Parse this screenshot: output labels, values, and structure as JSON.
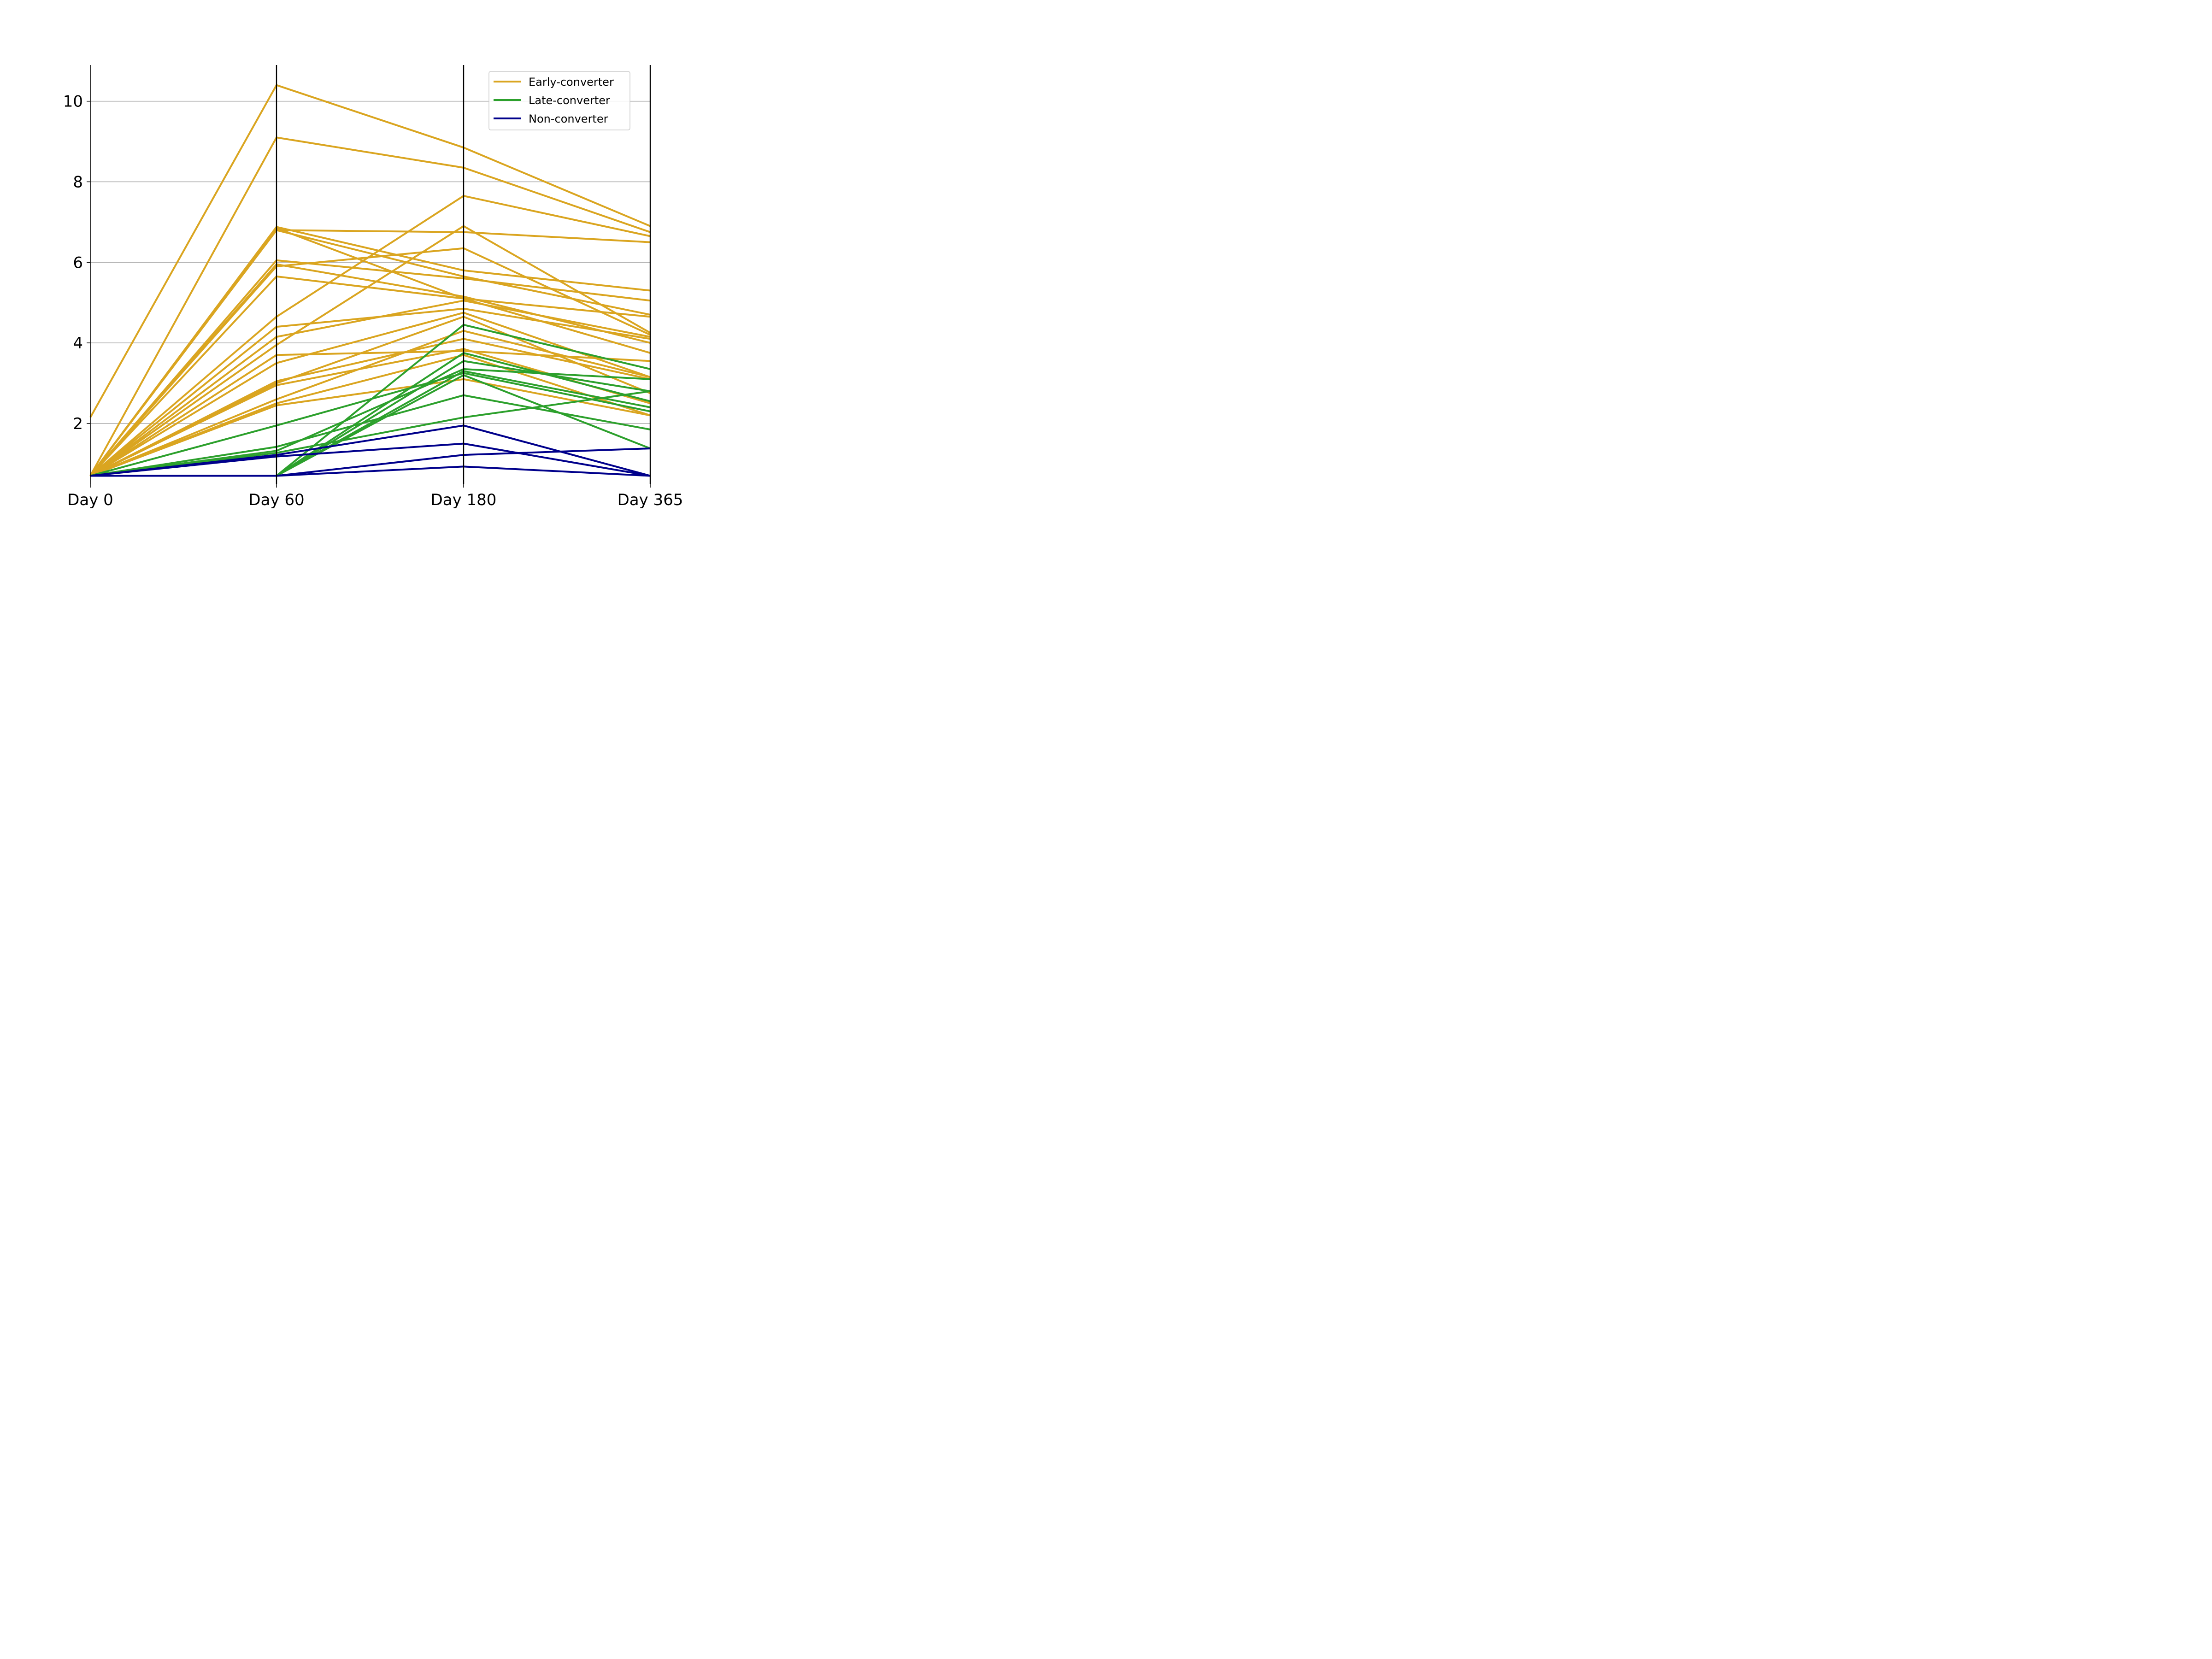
{
  "chart_data": {
    "type": "line",
    "title": "",
    "xlabel": "",
    "ylabel": "",
    "categories": [
      "Day 0",
      "Day 60",
      "Day 180",
      "Day 365"
    ],
    "yticks": [
      "2",
      "4",
      "6",
      "8",
      "10"
    ],
    "ylim": [
      0.5,
      10.9
    ],
    "grid": "horizontal",
    "legend": {
      "position": "top-right",
      "entries": [
        "Early-converter",
        "Late-converter",
        "Non-converter"
      ]
    },
    "colors": {
      "Early-converter": "#daa520",
      "Late-converter": "#2ca02c",
      "Non-converter": "#00008b"
    },
    "series": [
      {
        "group": "Early-converter",
        "values": [
          2.15,
          10.4,
          8.85,
          6.9
        ]
      },
      {
        "group": "Early-converter",
        "values": [
          0.7,
          9.1,
          8.35,
          6.75
        ]
      },
      {
        "group": "Early-converter",
        "values": [
          0.7,
          6.88,
          5.8,
          5.3
        ]
      },
      {
        "group": "Early-converter",
        "values": [
          0.7,
          6.8,
          6.75,
          6.5
        ]
      },
      {
        "group": "Early-converter",
        "values": [
          0.7,
          6.8,
          5.65,
          4.7
        ]
      },
      {
        "group": "Early-converter",
        "values": [
          0.7,
          6.85,
          5.1,
          4.65
        ]
      },
      {
        "group": "Early-converter",
        "values": [
          0.7,
          6.05,
          5.6,
          5.05
        ]
      },
      {
        "group": "Early-converter",
        "values": [
          0.7,
          5.9,
          6.35,
          4.2
        ]
      },
      {
        "group": "Early-converter",
        "values": [
          0.7,
          5.95,
          5.15,
          4.0
        ]
      },
      {
        "group": "Early-converter",
        "values": [
          0.7,
          5.65,
          5.1,
          3.75
        ]
      },
      {
        "group": "Early-converter",
        "values": [
          0.7,
          4.65,
          7.65,
          6.65
        ]
      },
      {
        "group": "Early-converter",
        "values": [
          0.7,
          4.4,
          4.85,
          4.1
        ]
      },
      {
        "group": "Early-converter",
        "values": [
          0.7,
          4.15,
          5.05,
          4.15
        ]
      },
      {
        "group": "Early-converter",
        "values": [
          0.7,
          3.95,
          6.9,
          4.25
        ]
      },
      {
        "group": "Early-converter",
        "values": [
          0.7,
          3.7,
          3.8,
          3.55
        ]
      },
      {
        "group": "Early-converter",
        "values": [
          0.7,
          3.5,
          4.75,
          3.15
        ]
      },
      {
        "group": "Early-converter",
        "values": [
          0.7,
          3.05,
          4.1,
          3.1
        ]
      },
      {
        "group": "Early-converter",
        "values": [
          0.7,
          3.0,
          4.65,
          2.75
        ]
      },
      {
        "group": "Early-converter",
        "values": [
          0.7,
          2.95,
          3.85,
          2.5
        ]
      },
      {
        "group": "Early-converter",
        "values": [
          0.7,
          2.6,
          4.3,
          3.15
        ]
      },
      {
        "group": "Early-converter",
        "values": [
          0.7,
          2.5,
          3.7,
          2.2
        ]
      },
      {
        "group": "Early-converter",
        "values": [
          0.7,
          2.45,
          3.1,
          2.2
        ]
      },
      {
        "group": "Late-converter",
        "values": [
          0.7,
          1.95,
          3.25,
          2.3
        ]
      },
      {
        "group": "Late-converter",
        "values": [
          0.7,
          1.42,
          2.7,
          1.85
        ]
      },
      {
        "group": "Late-converter",
        "values": [
          0.7,
          1.32,
          3.35,
          3.1
        ]
      },
      {
        "group": "Late-converter",
        "values": [
          0.7,
          1.27,
          2.15,
          2.8
        ]
      },
      {
        "group": "Late-converter",
        "values": [
          0.7,
          0.7,
          4.45,
          3.35
        ]
      },
      {
        "group": "Late-converter",
        "values": [
          0.7,
          0.7,
          3.75,
          2.55
        ]
      },
      {
        "group": "Late-converter",
        "values": [
          0.7,
          0.7,
          3.55,
          2.8
        ]
      },
      {
        "group": "Late-converter",
        "values": [
          0.7,
          0.7,
          3.3,
          2.4
        ]
      },
      {
        "group": "Late-converter",
        "values": [
          0.7,
          0.7,
          3.2,
          1.38
        ]
      },
      {
        "group": "Non-converter",
        "values": [
          0.7,
          1.22,
          1.95,
          0.7
        ]
      },
      {
        "group": "Non-converter",
        "values": [
          0.7,
          1.18,
          1.5,
          0.7
        ]
      },
      {
        "group": "Non-converter",
        "values": [
          0.7,
          0.7,
          1.22,
          1.38
        ]
      },
      {
        "group": "Non-converter",
        "values": [
          0.7,
          0.7,
          0.93,
          0.7
        ]
      }
    ]
  }
}
